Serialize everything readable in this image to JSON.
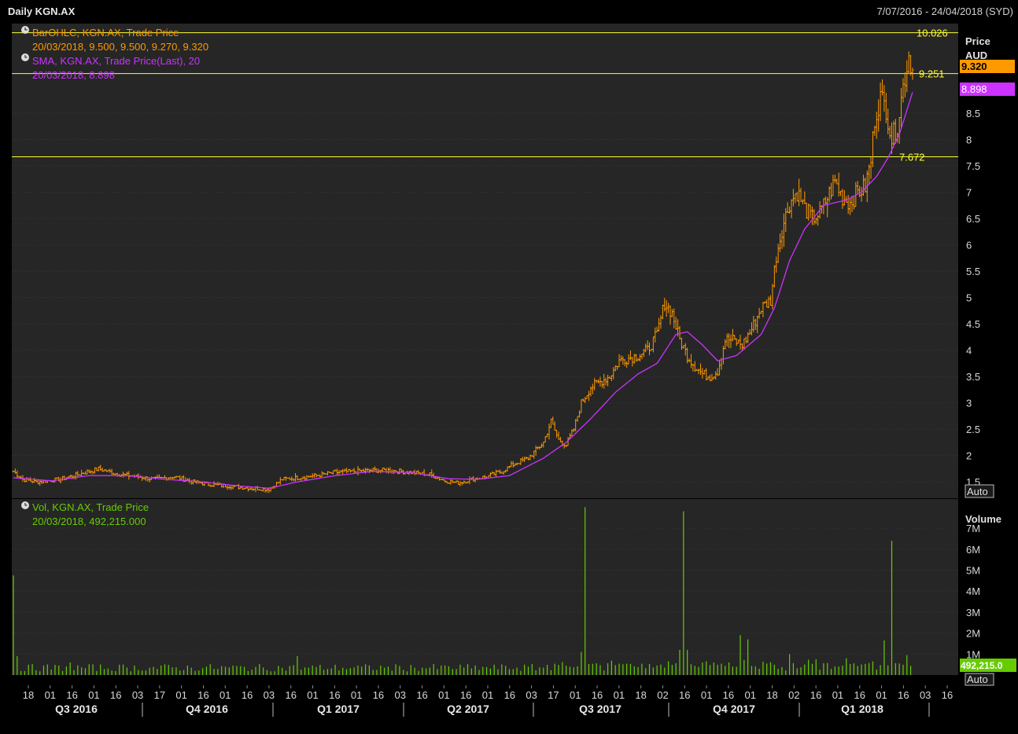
{
  "header": {
    "title": "Daily KGN.AX",
    "date_range": "7/07/2016 - 24/04/2018 (SYD)"
  },
  "colors": {
    "background": "#262626",
    "frame": "#000000",
    "grid": "#3a3a3a",
    "ohlc": "#ff9900",
    "sma": "#cc33ff",
    "volume": "#66cc00",
    "hline": "#ffff33",
    "axis_text": "#d8d8d8"
  },
  "chart_data": [
    {
      "type": "ohlc",
      "title": "Daily KGN.AX",
      "legend": [
        {
          "label": "BarOHLC, KGN.AX, Trade Price",
          "values": "20/03/2018, 9.500, 9.500, 9.270, 9.320",
          "color": "#ff9900",
          "icon": "clock-icon"
        },
        {
          "label": "SMA, KGN.AX, Trade Price(Last),  20",
          "values": "20/03/2018, 8.898",
          "color": "#cc33ff",
          "icon": "clock-icon"
        }
      ],
      "y_axis": {
        "title": "Price",
        "unit": "AUD",
        "ticks": [
          "1.5",
          "2",
          "2.5",
          "3",
          "3.5",
          "4",
          "4.5",
          "5",
          "5.5",
          "6",
          "6.5",
          "7",
          "7.5",
          "8",
          "8.5"
        ],
        "ylim": [
          1.25,
          10.2
        ],
        "scale_button": "Auto"
      },
      "last_values": {
        "price": "9.320",
        "sma": "8.898"
      },
      "horizontal_lines": [
        {
          "value": 10.026,
          "label": "10.026"
        },
        {
          "value": 9.251,
          "label": "9.251"
        },
        {
          "value": 7.672,
          "label": "7.672"
        }
      ],
      "series_anchors": {
        "note": "date index (trading days from 7/07/2016) and close price",
        "close": [
          [
            0,
            1.7
          ],
          [
            5,
            1.55
          ],
          [
            12,
            1.5
          ],
          [
            25,
            1.55
          ],
          [
            35,
            1.65
          ],
          [
            45,
            1.75
          ],
          [
            55,
            1.65
          ],
          [
            65,
            1.6
          ],
          [
            75,
            1.55
          ],
          [
            85,
            1.6
          ],
          [
            95,
            1.5
          ],
          [
            105,
            1.45
          ],
          [
            115,
            1.42
          ],
          [
            125,
            1.38
          ],
          [
            135,
            1.36
          ],
          [
            142,
            1.55
          ],
          [
            150,
            1.58
          ],
          [
            160,
            1.62
          ],
          [
            170,
            1.68
          ],
          [
            180,
            1.7
          ],
          [
            190,
            1.72
          ],
          [
            200,
            1.72
          ],
          [
            210,
            1.68
          ],
          [
            220,
            1.64
          ],
          [
            228,
            1.52
          ],
          [
            235,
            1.48
          ],
          [
            242,
            1.55
          ],
          [
            250,
            1.6
          ],
          [
            258,
            1.7
          ],
          [
            265,
            1.85
          ],
          [
            272,
            1.95
          ],
          [
            280,
            2.25
          ],
          [
            284,
            2.65
          ],
          [
            288,
            2.3
          ],
          [
            292,
            2.2
          ],
          [
            296,
            2.5
          ],
          [
            300,
            3.0
          ],
          [
            305,
            3.3
          ],
          [
            310,
            3.4
          ],
          [
            315,
            3.5
          ],
          [
            320,
            3.8
          ],
          [
            325,
            3.85
          ],
          [
            330,
            3.9
          ],
          [
            335,
            4.0
          ],
          [
            340,
            4.3
          ],
          [
            344,
            4.9
          ],
          [
            348,
            4.7
          ],
          [
            352,
            4.2
          ],
          [
            356,
            3.9
          ],
          [
            360,
            3.7
          ],
          [
            364,
            3.55
          ],
          [
            368,
            3.5
          ],
          [
            372,
            3.6
          ],
          [
            376,
            4.2
          ],
          [
            380,
            4.2
          ],
          [
            385,
            4.1
          ],
          [
            390,
            4.4
          ],
          [
            395,
            4.8
          ],
          [
            400,
            4.95
          ],
          [
            403,
            5.8
          ],
          [
            406,
            6.3
          ],
          [
            410,
            6.8
          ],
          [
            414,
            7.0
          ],
          [
            418,
            6.7
          ],
          [
            422,
            6.5
          ],
          [
            426,
            6.6
          ],
          [
            430,
            6.9
          ],
          [
            434,
            7.2
          ],
          [
            438,
            6.9
          ],
          [
            442,
            6.8
          ],
          [
            446,
            7.0
          ],
          [
            450,
            7.1
          ],
          [
            453,
            7.6
          ],
          [
            455,
            8.4
          ],
          [
            458,
            8.8
          ],
          [
            461,
            8.6
          ],
          [
            464,
            8.0
          ],
          [
            467,
            8.3
          ],
          [
            470,
            9.0
          ],
          [
            473,
            9.6
          ],
          [
            475,
            9.32
          ]
        ],
        "sma": [
          [
            0,
            1.58
          ],
          [
            20,
            1.52
          ],
          [
            40,
            1.62
          ],
          [
            60,
            1.62
          ],
          [
            80,
            1.55
          ],
          [
            100,
            1.5
          ],
          [
            120,
            1.42
          ],
          [
            135,
            1.38
          ],
          [
            150,
            1.5
          ],
          [
            170,
            1.62
          ],
          [
            190,
            1.7
          ],
          [
            210,
            1.68
          ],
          [
            230,
            1.56
          ],
          [
            245,
            1.55
          ],
          [
            262,
            1.62
          ],
          [
            280,
            1.95
          ],
          [
            292,
            2.25
          ],
          [
            305,
            2.7
          ],
          [
            318,
            3.2
          ],
          [
            330,
            3.55
          ],
          [
            340,
            3.75
          ],
          [
            350,
            4.3
          ],
          [
            356,
            4.35
          ],
          [
            364,
            4.1
          ],
          [
            372,
            3.8
          ],
          [
            382,
            3.9
          ],
          [
            395,
            4.3
          ],
          [
            402,
            4.8
          ],
          [
            410,
            5.7
          ],
          [
            418,
            6.3
          ],
          [
            428,
            6.75
          ],
          [
            440,
            6.85
          ],
          [
            448,
            7.0
          ],
          [
            456,
            7.3
          ],
          [
            462,
            7.65
          ],
          [
            468,
            8.1
          ],
          [
            475,
            8.898
          ]
        ]
      }
    },
    {
      "type": "bar",
      "title": "",
      "legend": [
        {
          "label": "Vol, KGN.AX, Trade Price",
          "values": "20/03/2018, 492,215.000",
          "color": "#66cc00",
          "icon": "clock-icon"
        }
      ],
      "y_axis": {
        "title": "Volume",
        "ticks": [
          "1M",
          "2M",
          "3M",
          "4M",
          "5M",
          "6M",
          "7M"
        ],
        "ylim": [
          0,
          8200000
        ],
        "scale_button": "Auto"
      },
      "last_value": "492,215.0",
      "spikes_millions": [
        [
          0,
          4.75
        ],
        [
          1,
          1.9
        ],
        [
          2,
          0.9
        ],
        [
          30,
          0.6
        ],
        [
          150,
          0.9
        ],
        [
          300,
          1.1
        ],
        [
          303,
          8.0
        ],
        [
          352,
          1.2
        ],
        [
          354,
          7.8
        ],
        [
          357,
          1.2
        ],
        [
          370,
          0.6
        ],
        [
          378,
          0.6
        ],
        [
          384,
          1.9
        ],
        [
          389,
          1.7
        ],
        [
          410,
          1.0
        ],
        [
          440,
          0.8
        ],
        [
          461,
          1.65
        ],
        [
          464,
          6.4
        ],
        [
          473,
          0.95
        ]
      ],
      "base_millions": 0.35
    }
  ],
  "x_axis": {
    "day_labels": [
      "18",
      "01",
      "16",
      "01",
      "16",
      "03",
      "17",
      "01",
      "16",
      "01",
      "16",
      "03",
      "16",
      "01",
      "16",
      "01",
      "16",
      "03",
      "16",
      "01",
      "16",
      "01",
      "16",
      "03",
      "17",
      "01",
      "16",
      "01",
      "18",
      "02",
      "16",
      "01",
      "16",
      "01",
      "18",
      "02",
      "16",
      "01",
      "16",
      "01",
      "16",
      "03",
      "16"
    ],
    "quarters": [
      "Q3 2016",
      "Q4 2016",
      "Q1 2017",
      "Q2 2017",
      "Q3 2017",
      "Q4 2017",
      "Q1 2018"
    ]
  }
}
